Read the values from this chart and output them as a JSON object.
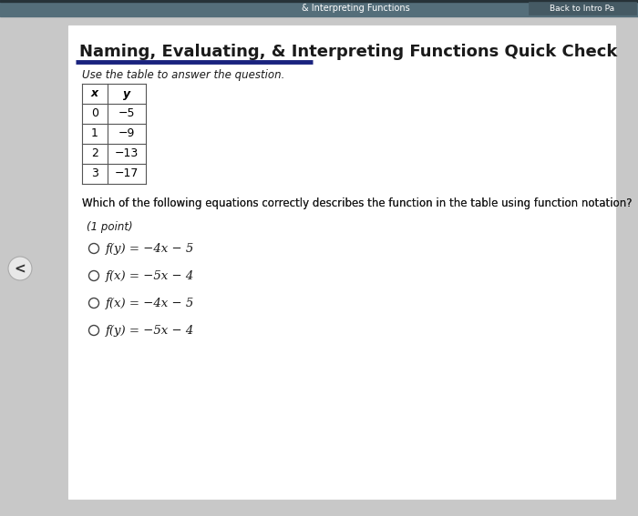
{
  "bg_color": "#c8c8c8",
  "card_color": "#f5f5f5",
  "title": "Naming, Evaluating, & Interpreting Functions Quick Check",
  "subtitle": "Use the table to answer the question.",
  "table_headers": [
    "x",
    "y"
  ],
  "table_data": [
    [
      "0",
      "−5"
    ],
    [
      "1",
      "−9"
    ],
    [
      "2",
      "−13"
    ],
    [
      "3",
      "−17"
    ]
  ],
  "question": "Which of the following equations correctly describes the function in the table using function notation?",
  "point_label": "(1 point)",
  "choices": [
    "f(y) = −4x − 5",
    "f(x) = −5x − 4",
    "f(x) = −4x − 5",
    "f(y) = −5x − 4"
  ],
  "underline_color": "#1a237e",
  "nav_bar_color": "#546e7a",
  "nav_text_left": "& Interpreting Functions",
  "nav_text_right": "Back to Intro Pa",
  "title_font_size": 13,
  "subtitle_font_size": 8.5,
  "question_font_size": 8.5,
  "choice_font_size": 9.5,
  "point_font_size": 8.5
}
